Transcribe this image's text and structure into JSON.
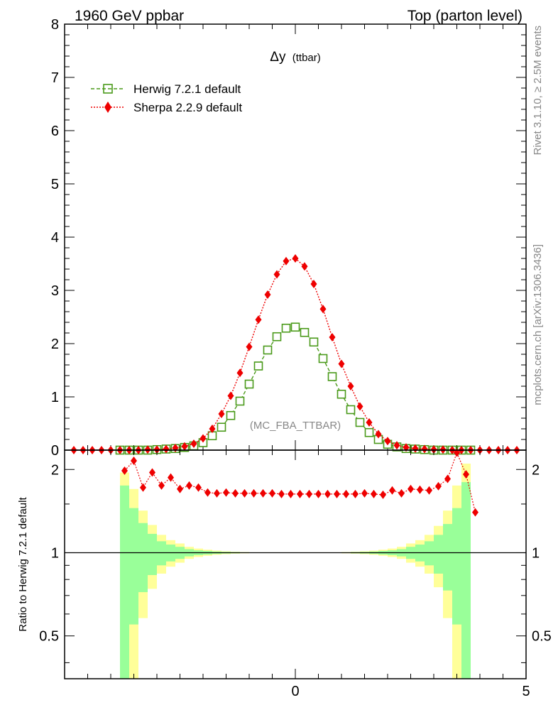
{
  "header": {
    "left_title": "1960 GeV ppbar",
    "right_title": "Top (parton level)"
  },
  "plot": {
    "observable_main": "Δy",
    "observable_sub": "(ttbar)",
    "analysis_tag": "(MC_FBA_TTBAR)",
    "ratio_ylabel": "Ratio to Herwig 7.2.1 default",
    "side_text_top": "Rivet 3.1.10, ≥ 2.5M events",
    "side_text_bottom": "mcplots.cern.ch [arXiv:1306.3436]"
  },
  "colors": {
    "herwig": "#4a9a1a",
    "sherpa": "#ee0000",
    "band_inner": "#99ff99",
    "band_outer": "#ffff99"
  },
  "chart_data": [
    {
      "type": "line",
      "panel": "main",
      "xlim": [
        -5,
        5
      ],
      "ylim": [
        0,
        8
      ],
      "yticks": [
        "0",
        "1",
        "2",
        "3",
        "4",
        "5",
        "6",
        "7",
        "8"
      ],
      "legend_position": "top-left",
      "series": [
        {
          "name": "Herwig 7.2.1 default",
          "style": "dashed-open-square",
          "x": [
            -3.8,
            -3.6,
            -3.4,
            -3.2,
            -3.0,
            -2.8,
            -2.6,
            -2.4,
            -2.2,
            -2.0,
            -1.8,
            -1.6,
            -1.4,
            -1.2,
            -1.0,
            -0.8,
            -0.6,
            -0.4,
            -0.2,
            0.0,
            0.2,
            0.4,
            0.6,
            0.8,
            1.0,
            1.2,
            1.4,
            1.6,
            1.8,
            2.0,
            2.2,
            2.4,
            2.6,
            2.8,
            3.0,
            3.2,
            3.4,
            3.6,
            3.8
          ],
          "y": [
            0.0,
            0.0,
            0.0,
            0.0,
            0.01,
            0.02,
            0.03,
            0.05,
            0.08,
            0.14,
            0.27,
            0.43,
            0.65,
            0.92,
            1.24,
            1.58,
            1.88,
            2.13,
            2.29,
            2.31,
            2.21,
            2.03,
            1.72,
            1.38,
            1.05,
            0.76,
            0.52,
            0.33,
            0.2,
            0.11,
            0.06,
            0.03,
            0.02,
            0.01,
            0.0,
            0.0,
            0.0,
            0.0,
            0.0
          ]
        },
        {
          "name": "Sherpa 2.2.9 default",
          "style": "dotted-filled-diamond",
          "x": [
            -4.8,
            -4.6,
            -4.4,
            -4.2,
            -4.0,
            -3.8,
            -3.6,
            -3.4,
            -3.2,
            -3.0,
            -2.8,
            -2.6,
            -2.4,
            -2.2,
            -2.0,
            -1.8,
            -1.6,
            -1.4,
            -1.2,
            -1.0,
            -0.8,
            -0.6,
            -0.4,
            -0.2,
            0.0,
            0.2,
            0.4,
            0.6,
            0.8,
            1.0,
            1.2,
            1.4,
            1.6,
            1.8,
            2.0,
            2.2,
            2.4,
            2.6,
            2.8,
            3.0,
            3.2,
            3.4,
            3.6,
            3.8,
            4.0,
            4.2,
            4.4,
            4.6,
            4.8
          ],
          "y": [
            0.0,
            0.0,
            0.0,
            0.0,
            0.0,
            0.0,
            0.0,
            0.0,
            0.01,
            0.01,
            0.02,
            0.04,
            0.07,
            0.12,
            0.22,
            0.4,
            0.68,
            1.02,
            1.45,
            1.94,
            2.45,
            2.92,
            3.3,
            3.55,
            3.6,
            3.45,
            3.12,
            2.65,
            2.12,
            1.62,
            1.2,
            0.82,
            0.52,
            0.3,
            0.17,
            0.09,
            0.05,
            0.03,
            0.02,
            0.01,
            0.01,
            0.0,
            0.0,
            0.0,
            0.0,
            0.0,
            0.0,
            0.0,
            0.0
          ]
        }
      ]
    },
    {
      "type": "line",
      "panel": "ratio",
      "xlim": [
        -5,
        5
      ],
      "ylim": [
        0.35,
        2.35
      ],
      "xticks": [
        "0",
        "5"
      ],
      "yticks": [
        "0.5",
        "1",
        "2"
      ],
      "reference_line": 1,
      "uncertainty_band": {
        "x_edges": [
          -3.8,
          -3.6,
          -3.4,
          -3.2,
          -3.0,
          -2.8,
          -2.6,
          -2.4,
          -2.2,
          -2.0,
          -1.8,
          -1.6,
          -1.4,
          -1.2,
          -1.0,
          1.0,
          1.2,
          1.4,
          1.6,
          1.8,
          2.0,
          2.2,
          2.4,
          2.6,
          2.8,
          3.0,
          3.2,
          3.4,
          3.6,
          3.8
        ],
        "inner_halfwidth": [
          0.75,
          0.45,
          0.28,
          0.17,
          0.1,
          0.07,
          0.05,
          0.03,
          0.02,
          0.015,
          0.01,
          0.007,
          0.005,
          0.003,
          0.002,
          0.003,
          0.005,
          0.007,
          0.01,
          0.015,
          0.02,
          0.03,
          0.05,
          0.07,
          0.1,
          0.16,
          0.27,
          0.45,
          0.8
        ],
        "outer_halfwidth": [
          0.95,
          0.7,
          0.42,
          0.26,
          0.16,
          0.11,
          0.08,
          0.05,
          0.035,
          0.025,
          0.017,
          0.012,
          0.008,
          0.005,
          0.003,
          0.005,
          0.008,
          0.012,
          0.017,
          0.025,
          0.035,
          0.05,
          0.08,
          0.11,
          0.16,
          0.25,
          0.42,
          0.75,
          1.1
        ]
      },
      "series": [
        {
          "name": "Sherpa 2.2.9 default",
          "x": [
            -3.7,
            -3.5,
            -3.3,
            -3.1,
            -2.9,
            -2.7,
            -2.5,
            -2.3,
            -2.1,
            -1.9,
            -1.7,
            -1.5,
            -1.3,
            -1.1,
            -0.9,
            -0.7,
            -0.5,
            -0.3,
            -0.1,
            0.1,
            0.3,
            0.5,
            0.7,
            0.9,
            1.1,
            1.3,
            1.5,
            1.7,
            1.9,
            2.1,
            2.3,
            2.5,
            2.7,
            2.9,
            3.1,
            3.3,
            3.5,
            3.7,
            3.9
          ],
          "y": [
            1.98,
            2.15,
            1.72,
            1.95,
            1.75,
            1.87,
            1.7,
            1.75,
            1.72,
            1.65,
            1.64,
            1.65,
            1.64,
            1.64,
            1.64,
            1.64,
            1.64,
            1.63,
            1.63,
            1.63,
            1.63,
            1.63,
            1.63,
            1.63,
            1.63,
            1.63,
            1.64,
            1.63,
            1.62,
            1.68,
            1.64,
            1.7,
            1.69,
            1.68,
            1.74,
            1.85,
            2.3,
            1.92,
            1.4
          ]
        }
      ]
    }
  ]
}
